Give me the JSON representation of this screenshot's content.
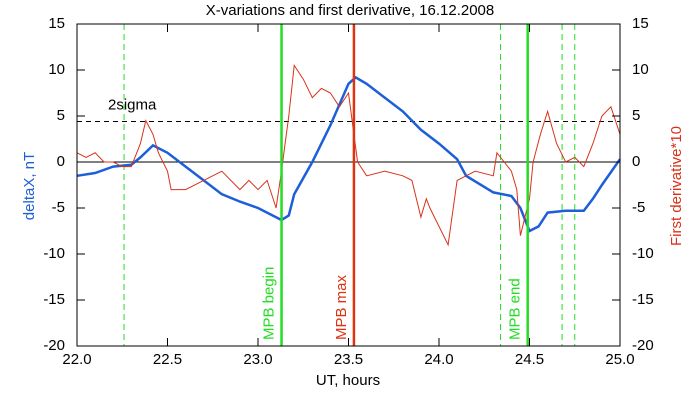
{
  "chart_data": {
    "type": "line",
    "title": "X-variations and first derivative, 16.12.2008",
    "x_label": "UT, hours",
    "y_label": "deltaX, nT",
    "y2_label": "First derivative*10",
    "xlim": [
      22.0,
      25.0
    ],
    "xticks": [
      {
        "value": 22.0,
        "label": "22.0"
      },
      {
        "value": 22.5,
        "label": "22.5"
      },
      {
        "value": 23.0,
        "label": "23.0"
      },
      {
        "value": 23.5,
        "label": "23.5"
      },
      {
        "value": 24.0,
        "label": "24.0"
      },
      {
        "value": 24.5,
        "label": "24.5"
      },
      {
        "value": 25.0,
        "label": "25.0"
      }
    ],
    "ylim": [
      -20,
      15
    ],
    "yticks": [
      -20,
      -15,
      -10,
      -5,
      0,
      5,
      10,
      15
    ],
    "y2lim": [
      -20,
      15
    ],
    "y2ticks": [
      -20,
      -15,
      -10,
      -5,
      0,
      5,
      10,
      15
    ],
    "series": [
      {
        "name": "deltaX",
        "color": "#1c5fd8",
        "axis": "y",
        "x": [
          22.0,
          22.1,
          22.2,
          22.3,
          22.35,
          22.42,
          22.5,
          22.6,
          22.7,
          22.8,
          22.9,
          23.0,
          23.1,
          23.13,
          23.17,
          23.2,
          23.3,
          23.4,
          23.5,
          23.54,
          23.6,
          23.7,
          23.8,
          23.9,
          24.0,
          24.1,
          24.15,
          24.3,
          24.4,
          24.45,
          24.5,
          24.55,
          24.6,
          24.7,
          24.8,
          24.85,
          24.9,
          25.0
        ],
        "values": [
          -1.5,
          -1.2,
          -0.5,
          -0.3,
          0.5,
          1.8,
          1,
          -0.5,
          -2,
          -3.5,
          -4.3,
          -5,
          -6,
          -6.3,
          -5.8,
          -3.5,
          0,
          4,
          8.5,
          9.2,
          8.5,
          7,
          5.5,
          3.5,
          2,
          0.3,
          -1.5,
          -3.3,
          -3.7,
          -5,
          -7.5,
          -7,
          -5.5,
          -5.3,
          -5.3,
          -4,
          -2.5,
          0.3
        ]
      },
      {
        "name": "First derivative*10",
        "color": "#d9321a",
        "axis": "y2",
        "x": [
          22.0,
          22.05,
          22.1,
          22.15,
          22.2,
          22.25,
          22.3,
          22.35,
          22.38,
          22.42,
          22.45,
          22.5,
          22.52,
          22.6,
          22.7,
          22.8,
          22.9,
          22.95,
          23.0,
          23.05,
          23.1,
          23.13,
          23.15,
          23.17,
          23.2,
          23.25,
          23.3,
          23.35,
          23.4,
          23.45,
          23.5,
          23.53,
          23.55,
          23.6,
          23.7,
          23.8,
          23.85,
          23.9,
          23.93,
          23.95,
          24.0,
          24.05,
          24.1,
          24.2,
          24.3,
          24.32,
          24.36,
          24.4,
          24.43,
          24.45,
          24.5,
          24.52,
          24.56,
          24.6,
          24.65,
          24.7,
          24.75,
          24.8,
          24.85,
          24.9,
          24.95,
          25.0
        ],
        "values": [
          1,
          0.5,
          1,
          0,
          0,
          -0.5,
          -0.5,
          2,
          4.5,
          3,
          1,
          -1,
          -3,
          -3,
          -2,
          -1,
          -3,
          -2,
          -3,
          -2,
          -5,
          -1,
          2,
          5,
          10.5,
          9,
          7,
          8,
          7.5,
          6,
          7.5,
          3,
          0,
          -1.5,
          -1,
          -1.5,
          -2,
          -6,
          -4,
          -5,
          -7,
          -9,
          -2,
          -1,
          -1.5,
          1,
          0,
          -1,
          -3,
          -8,
          -4,
          0,
          3,
          5.5,
          2,
          0,
          0.5,
          -0.5,
          2,
          5,
          6,
          3
        ]
      }
    ],
    "events": [
      {
        "x": 23.13,
        "label": "MPB begin",
        "color": "#22dd22"
      },
      {
        "x": 23.53,
        "label": "MPB max",
        "color": "#dd3311"
      },
      {
        "x": 24.49,
        "label": "MPB end",
        "color": "#22dd22"
      }
    ],
    "dashed_lines": [
      {
        "x": 22.26,
        "color": "#22dd22"
      },
      {
        "x": 24.34,
        "color": "#22dd22"
      },
      {
        "x": 24.68,
        "color": "#22dd22"
      },
      {
        "x": 24.75,
        "color": "#22dd22"
      }
    ],
    "threshold": {
      "value": 4.4,
      "label": "2sigma"
    }
  }
}
